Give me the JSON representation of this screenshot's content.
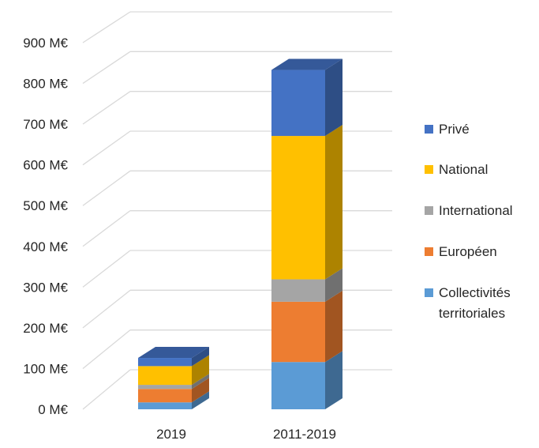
{
  "chart_data": {
    "type": "bar",
    "stacked": true,
    "three_d": true,
    "categories": [
      "2019",
      "2011-2019"
    ],
    "series": [
      {
        "name": "Collectivités territoriales",
        "name_lines": [
          "Collectivités",
          "territoriales"
        ],
        "color": "#5b9bd5",
        "values": [
          17,
          116
        ]
      },
      {
        "name": "Européen",
        "color": "#ed7d31",
        "values": [
          33,
          148
        ]
      },
      {
        "name": "International",
        "color": "#a5a5a5",
        "values": [
          10,
          55
        ]
      },
      {
        "name": "National",
        "color": "#ffc000",
        "values": [
          46,
          352
        ]
      },
      {
        "name": "Privé",
        "color": "#4472c4",
        "values": [
          20,
          162
        ]
      }
    ],
    "y_ticks": [
      "0 M€",
      "100 M€",
      "200 M€",
      "300 M€",
      "400 M€",
      "500 M€",
      "600 M€",
      "700 M€",
      "800 M€",
      "900 M€"
    ],
    "ylim": [
      0,
      900
    ],
    "legend_position": "right",
    "legend_order": [
      "Privé",
      "National",
      "International",
      "Européen",
      "Collectivités territoriales"
    ],
    "grid": true,
    "title": "",
    "xlabel": "",
    "ylabel": ""
  }
}
